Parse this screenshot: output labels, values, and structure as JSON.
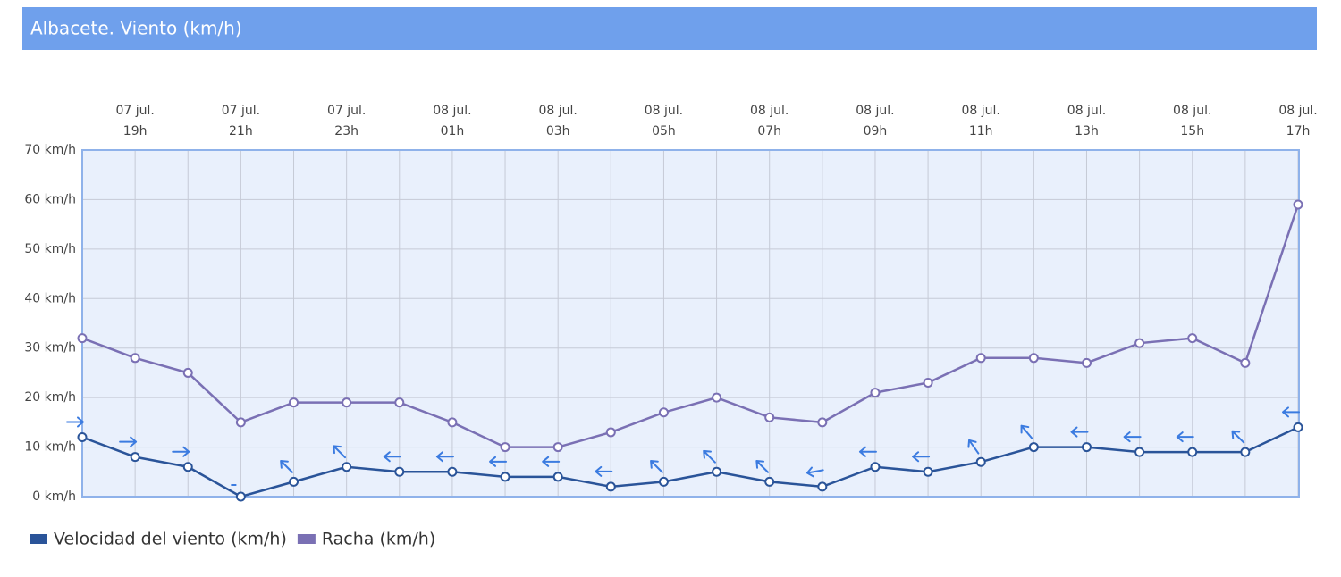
{
  "chart_data": {
    "type": "line",
    "title": "Albacete. Viento (km/h)",
    "categories": [
      null,
      [
        "07 jul.",
        "19h"
      ],
      null,
      [
        "07 jul.",
        "21h"
      ],
      null,
      [
        "07 jul.",
        "23h"
      ],
      null,
      [
        "08 jul.",
        "01h"
      ],
      null,
      [
        "08 jul.",
        "03h"
      ],
      null,
      [
        "08 jul.",
        "05h"
      ],
      null,
      [
        "08 jul.",
        "07h"
      ],
      null,
      [
        "08 jul.",
        "09h"
      ],
      null,
      [
        "08 jul.",
        "11h"
      ],
      null,
      [
        "08 jul.",
        "13h"
      ],
      null,
      [
        "08 jul.",
        "15h"
      ],
      null,
      [
        "08 jul.",
        "17h"
      ]
    ],
    "series": [
      {
        "name": "Velocidad del viento (km/h)",
        "color": "#2a5499",
        "values": [
          12,
          8,
          6,
          0,
          3,
          6,
          5,
          5,
          4,
          4,
          2,
          3,
          5,
          3,
          2,
          6,
          5,
          7,
          10,
          10,
          9,
          9,
          9,
          14
        ],
        "arrow_angles": [
          0,
          0,
          0,
          null,
          135,
          135,
          180,
          180,
          180,
          180,
          180,
          135,
          135,
          135,
          190,
          180,
          180,
          125,
          130,
          180,
          180,
          180,
          135,
          180
        ],
        "arrow_color": "#3b7be0"
      },
      {
        "name": "Racha (km/h)",
        "color": "#7a70b4",
        "values": [
          32,
          28,
          25,
          15,
          19,
          19,
          19,
          15,
          10,
          10,
          13,
          17,
          20,
          16,
          15,
          21,
          23,
          28,
          28,
          27,
          31,
          32,
          27,
          59
        ]
      }
    ],
    "ylim": [
      0,
      70
    ],
    "yticks": [
      {
        "value": 0,
        "label": "0 km/h"
      },
      {
        "value": 10,
        "label": "10 km/h"
      },
      {
        "value": 20,
        "label": "20 km/h"
      },
      {
        "value": 30,
        "label": "30 km/h"
      },
      {
        "value": 40,
        "label": "40 km/h"
      },
      {
        "value": 50,
        "label": "50 km/h"
      },
      {
        "value": 60,
        "label": "60 km/h"
      },
      {
        "value": 70,
        "label": "70 km/h"
      }
    ],
    "grid": true
  }
}
